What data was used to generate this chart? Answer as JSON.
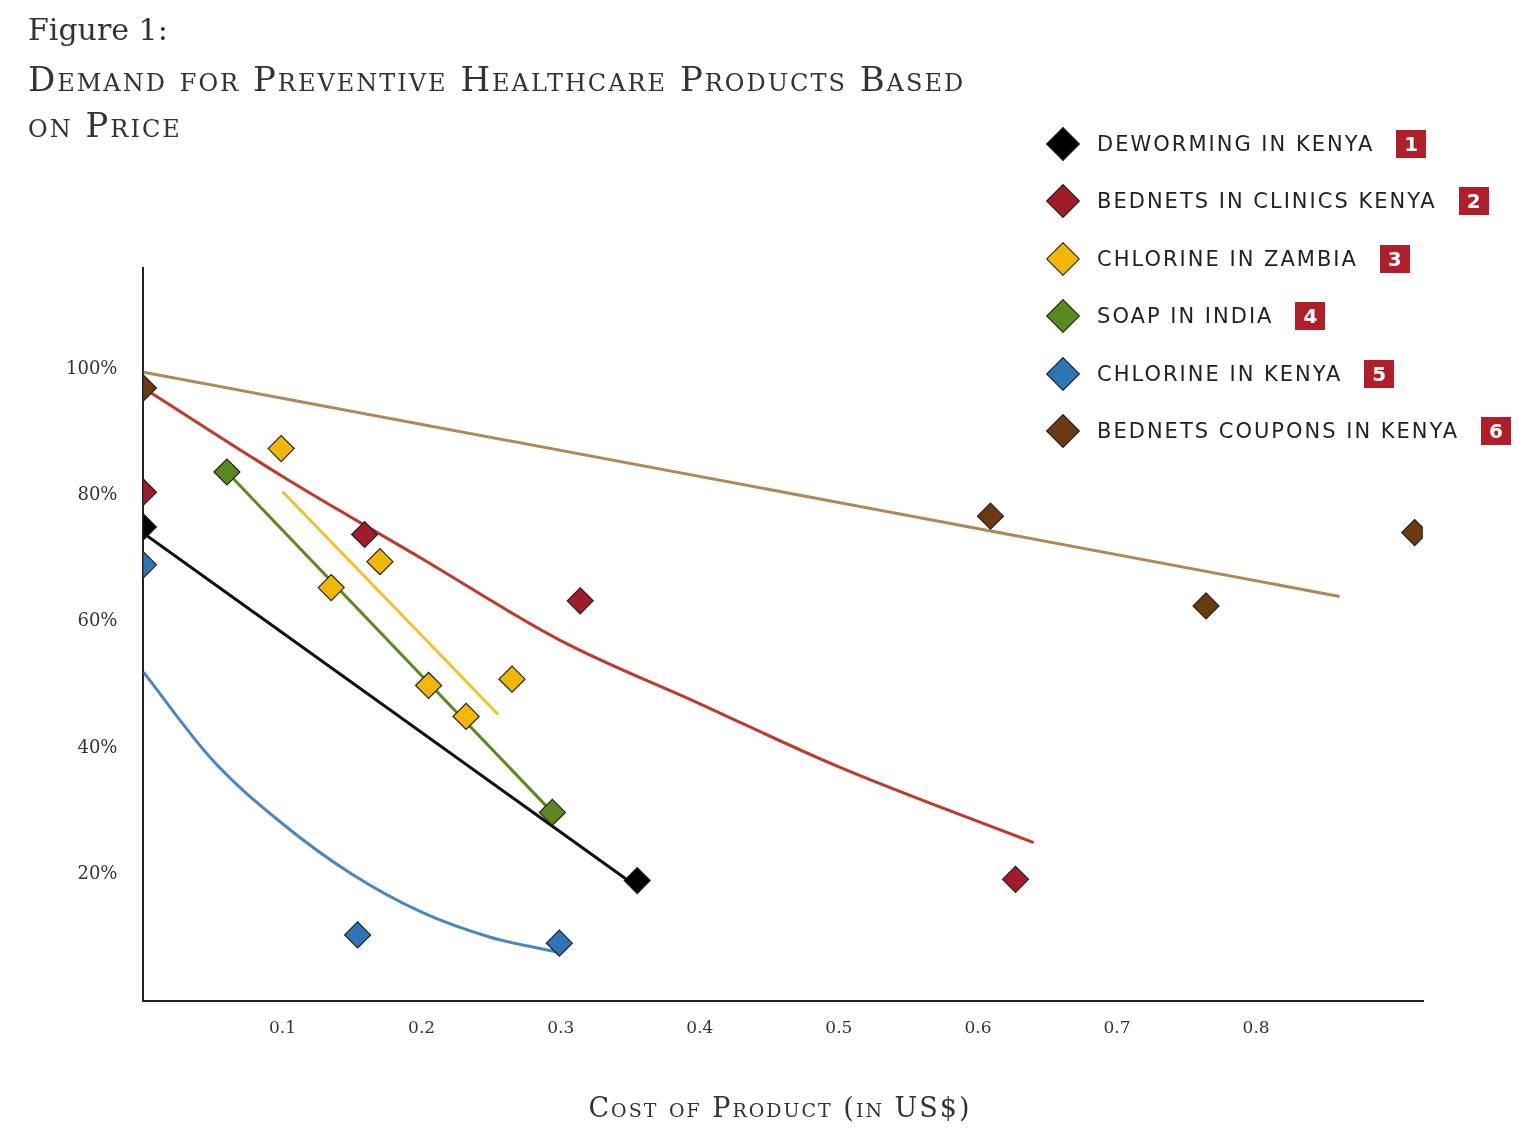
{
  "chart_data": {
    "type": "scatter",
    "title": "Figure 1:",
    "subtitle": "Demand for Preventive Healthcare Products Based on Price",
    "xlabel": "Cost of Product (in US$)",
    "xlim": [
      0,
      0.92
    ],
    "xticks": [
      0.1,
      0.2,
      0.3,
      0.4,
      0.5,
      0.6,
      0.7,
      0.8
    ],
    "ylim": [
      0,
      116
    ],
    "yticks": [
      {
        "value": 20,
        "label": "20%"
      },
      {
        "value": 40,
        "label": "40%"
      },
      {
        "value": 60,
        "label": "60%"
      },
      {
        "value": 80,
        "label": "80%"
      },
      {
        "value": 100,
        "label": "100%"
      }
    ],
    "grid": false,
    "legend": "top right",
    "marker": "diamond",
    "annotations": [
      "1",
      "2",
      "3",
      "4",
      "5",
      "6"
    ],
    "series": [
      {
        "type": "line",
        "marker": "none",
        "color": "#ad8a5a",
        "x": [
          0,
          0.86
        ],
        "values": [
          99.5,
          64
        ]
      },
      {
        "type": "line",
        "marker": "none",
        "color": "#c0392b",
        "x": [
          0,
          0.1,
          0.2,
          0.3,
          0.4,
          0.5,
          0.64
        ],
        "values": [
          97,
          83,
          70,
          57,
          47,
          37,
          25
        ]
      },
      {
        "type": "line",
        "marker": "none",
        "color": "#f2c12e",
        "x": [
          0.1,
          0.255
        ],
        "values": [
          80.6,
          45.3
        ]
      },
      {
        "type": "line",
        "marker": "none",
        "color": "#5a8a1e",
        "x": [
          0.06,
          0.294
        ],
        "values": [
          83.7,
          29.8
        ]
      },
      {
        "type": "line",
        "marker": "none",
        "color": "#111111",
        "x": [
          0,
          0.355
        ],
        "values": [
          74,
          18
        ]
      },
      {
        "type": "line",
        "marker": "none",
        "color": "#4a86bf",
        "x": [
          0,
          0.05,
          0.1,
          0.15,
          0.2,
          0.25,
          0.3
        ],
        "values": [
          52,
          38,
          28,
          20,
          14,
          10,
          7.6
        ]
      },
      {
        "name": "DEWORMING IN KENYA",
        "color": "#000000",
        "x": [
          0,
          0.355
        ],
        "values": [
          75,
          19
        ]
      },
      {
        "name": "BEDNETS IN CLINICS KENYA",
        "color": "#a01c2a",
        "x": [
          0,
          0.159,
          0.314,
          0.627
        ],
        "values": [
          80.5,
          73.8,
          63.3,
          19.2
        ]
      },
      {
        "name": "CHLORINE IN ZAMBIA",
        "color": "#f2b705",
        "x": [
          0.099,
          0.135,
          0.17,
          0.205,
          0.232,
          0.265
        ],
        "values": [
          87.4,
          65.4,
          69.5,
          49.9,
          45,
          50.9
        ]
      },
      {
        "name": "SOAP IN INDIA",
        "color": "#5a8a1e",
        "x": [
          0.06,
          0.294
        ],
        "values": [
          83.7,
          29.8
        ]
      },
      {
        "name": "CHLORINE IN KENYA",
        "color": "#2e75b6",
        "x": [
          0,
          0.154,
          0.299
        ],
        "values": [
          69,
          10.4,
          9.1
        ]
      },
      {
        "name": "BEDNETS COUPONS IN KENYA",
        "color": "#6b3a10",
        "x": [
          0,
          0.609,
          0.764,
          0.914
        ],
        "values": [
          97,
          76.7,
          62.5,
          74.1
        ]
      }
    ]
  }
}
